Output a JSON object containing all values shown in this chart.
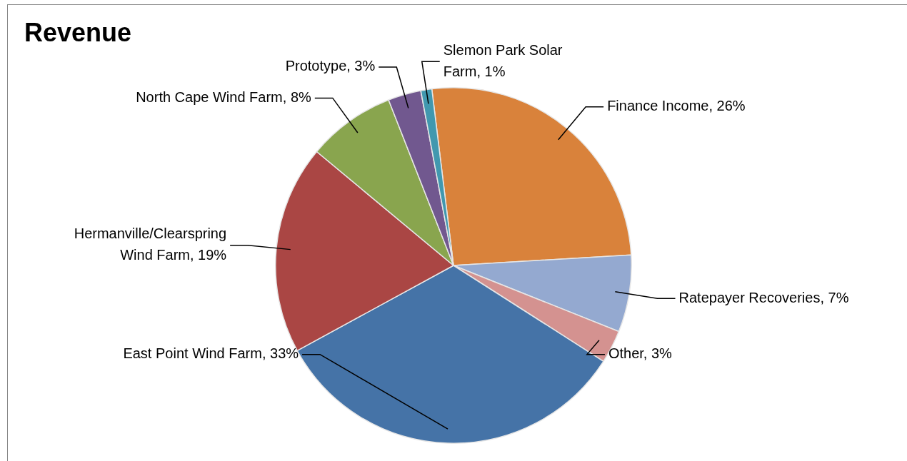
{
  "chart_data": {
    "type": "pie",
    "title": "Revenue",
    "categories": [
      "Finance Income",
      "Ratepayer Recoveries",
      "Other",
      "East Point Wind Farm",
      "Hermanville/Clearspring Wind Farm",
      "North Cape Wind Farm",
      "Prototype",
      "Slemon Park Solar Farm"
    ],
    "values": [
      26,
      7,
      3,
      33,
      19,
      8,
      3,
      1
    ],
    "value_labels": [
      "26%",
      "7%",
      "3%",
      "33%",
      "19%",
      "8%",
      "3%",
      "1%"
    ],
    "colors": [
      "#d9823b",
      "#94a9d0",
      "#d49290",
      "#4573a7",
      "#aa4644",
      "#89a54e",
      "#71588f",
      "#4198af"
    ],
    "legend": false
  }
}
